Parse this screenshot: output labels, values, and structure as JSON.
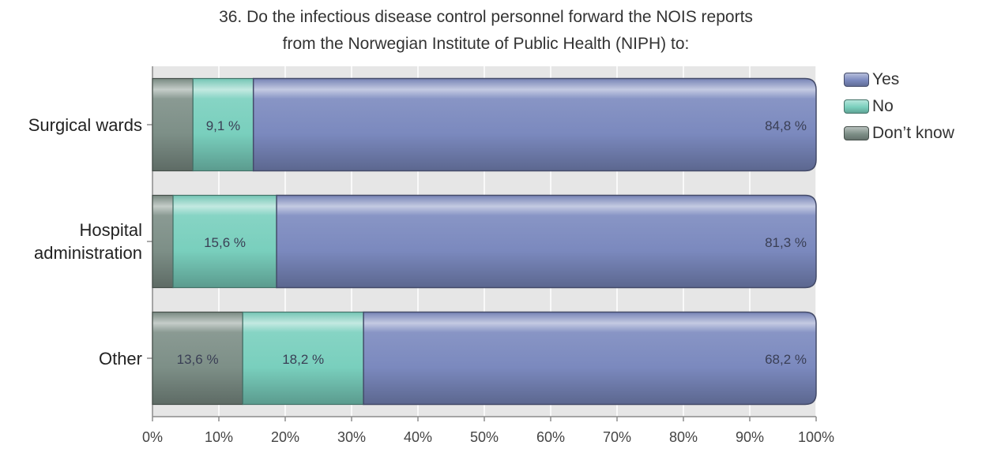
{
  "chart_data": {
    "type": "bar",
    "orientation": "horizontal",
    "stacked": true,
    "title_lines": [
      "36. Do the infectious disease control personnel forward the NOIS reports",
      "from the Norwegian Institute of Public Health (NIPH) to:"
    ],
    "categories": [
      {
        "lines": [
          "Surgical wards"
        ]
      },
      {
        "lines": [
          "Hospital",
          "administration"
        ]
      },
      {
        "lines": [
          "Other"
        ]
      }
    ],
    "series": [
      {
        "name": "Don’t know",
        "color": "#7d8f87",
        "values": [
          6.1,
          3.1,
          13.6
        ],
        "labels": [
          "",
          "",
          "13,6 %"
        ]
      },
      {
        "name": "No",
        "color": "#79cfbd",
        "values": [
          9.1,
          15.6,
          18.2
        ],
        "labels": [
          "9,1 %",
          "15,6 %",
          "18,2 %"
        ]
      },
      {
        "name": "Yes",
        "color": "#7b89be",
        "values": [
          84.8,
          81.3,
          68.2
        ],
        "labels": [
          "84,8 %",
          "81,3 %",
          "68,2 %"
        ]
      }
    ],
    "x_ticks": [
      "0%",
      "10%",
      "20%",
      "30%",
      "40%",
      "50%",
      "60%",
      "70%",
      "80%",
      "90%",
      "100%"
    ],
    "xlim": [
      0,
      100
    ],
    "grid": true,
    "legend_position": "right",
    "legend_order": [
      "Yes",
      "No",
      "Don’t know"
    ]
  }
}
